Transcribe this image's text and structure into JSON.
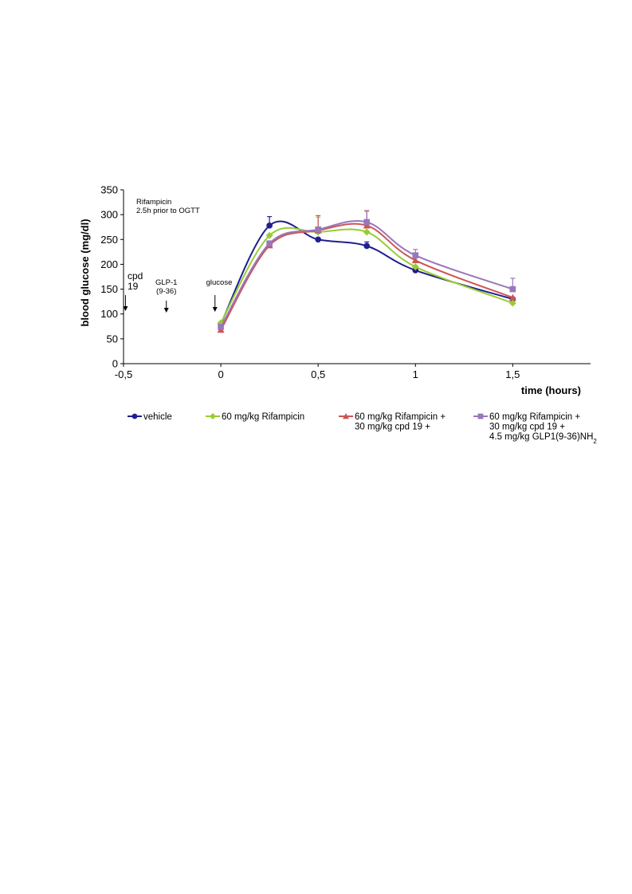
{
  "chart_data": {
    "type": "line",
    "xlabel": "time (hours)",
    "ylabel": "blood glucose (mg/dl)",
    "xlim": [
      -0.5,
      1.9
    ],
    "ylim": [
      0,
      350
    ],
    "x_ticks": [
      "-0,5",
      "0",
      "0,5",
      "1",
      "1,5"
    ],
    "x_tick_values": [
      -0.5,
      0,
      0.5,
      1,
      1.5
    ],
    "y_ticks": [
      "0",
      "50",
      "100",
      "150",
      "200",
      "250",
      "300",
      "350"
    ],
    "y_tick_values": [
      0,
      50,
      100,
      150,
      200,
      250,
      300,
      350
    ],
    "x": [
      0,
      0.25,
      0.5,
      0.75,
      1,
      1.5
    ],
    "series": [
      {
        "name": "vehicle",
        "color": "#1f1f8f",
        "marker": "circle",
        "values": [
          80,
          278,
          250,
          237,
          188,
          130
        ],
        "errors": [
          0,
          18,
          0,
          8,
          0,
          0
        ]
      },
      {
        "name": "60 mg/kg Rifampicin",
        "color": "#99cc33",
        "marker": "diamond",
        "values": [
          82,
          258,
          265,
          265,
          195,
          122
        ],
        "errors": [
          0,
          0,
          30,
          0,
          0,
          0
        ]
      },
      {
        "name": "60 mg/kg Rifampicin + 30 mg/kg cpd 19 +",
        "color": "#cc5555",
        "marker": "triangle",
        "values": [
          68,
          238,
          268,
          278,
          208,
          133
        ],
        "errors": [
          0,
          0,
          30,
          30,
          0,
          0
        ]
      },
      {
        "name": "60 mg/kg Rifampicin + 30 mg/kg cpd 19 + 4.5 mg/kg GLP1(9-36)NH2",
        "color": "#9977bb",
        "marker": "square",
        "values": [
          74,
          242,
          270,
          285,
          218,
          150
        ],
        "errors": [
          0,
          0,
          0,
          22,
          12,
          22
        ]
      }
    ],
    "legend": {
      "placement": "bottom",
      "items": [
        {
          "lines": [
            "vehicle"
          ]
        },
        {
          "lines": [
            "60 mg/kg Rifampicin"
          ]
        },
        {
          "lines": [
            "60 mg/kg Rifampicin +",
            "30 mg/kg cpd 19 +"
          ]
        },
        {
          "lines": [
            "60 mg/kg Rifampicin +",
            "30 mg/kg cpd 19 +",
            "4.5 mg/kg GLP1(9-36)NH"
          ],
          "subscript": "2"
        }
      ]
    },
    "annotations": [
      {
        "lines": [
          "Rifampicin",
          "2.5h prior to OGTT"
        ],
        "arrow": false
      },
      {
        "lines": [
          "cpd",
          "19"
        ],
        "arrow": true,
        "x": -0.49
      },
      {
        "lines": [
          "GLP-1",
          "(9-36)"
        ],
        "arrow": true,
        "x": -0.28
      },
      {
        "lines": [
          "glucose"
        ],
        "arrow": true,
        "x": -0.03
      }
    ],
    "grid": false
  }
}
